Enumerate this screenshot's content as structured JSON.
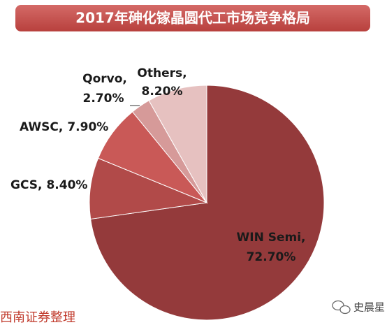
{
  "chart_data": {
    "type": "pie",
    "title": "2017年砷化镓晶圆代工市场竞争格局",
    "categories": [
      "WIN Semi,",
      "GCS,",
      "AWSC,",
      "Qorvo,",
      "Others,"
    ],
    "values": [
      72.7,
      8.4,
      7.9,
      2.7,
      8.2
    ],
    "value_labels": [
      "72.70%",
      "8.40%",
      "7.90%",
      "2.70%",
      "8.20%"
    ],
    "colors": [
      "#943a3b",
      "#b14a49",
      "#c95957",
      "#d69a99",
      "#e6c1c0"
    ],
    "source": "西南证券整理",
    "watermark": "史晨星"
  }
}
